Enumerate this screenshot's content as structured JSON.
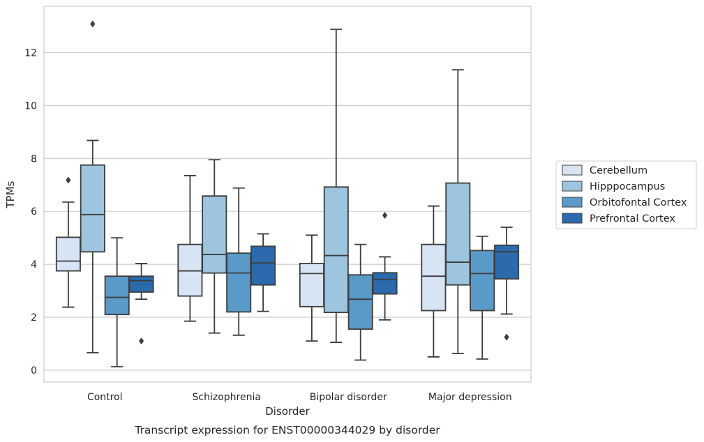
{
  "chart_data": {
    "type": "boxplot",
    "title": "",
    "caption": "Transcript expression for ENST00000344029 by disorder",
    "xlabel": "Disorder",
    "ylabel": "TPMs",
    "ylim": [
      -0.45,
      13.75
    ],
    "yticks": [
      "0",
      "2",
      "4",
      "6",
      "8",
      "10",
      "12"
    ],
    "grid": "horizontal",
    "legend_position": "right",
    "categories": [
      "Control",
      "Schizophrenia",
      "Bipolar disorder",
      "Major depression"
    ],
    "series": [
      {
        "name": "Cerebellum",
        "color": "#d6e4f3",
        "boxes": [
          {
            "whisker_low": 2.38,
            "q1": 3.75,
            "median": 4.12,
            "q3": 5.02,
            "whisker_high": 6.35,
            "outliers": [
              7.18
            ]
          },
          {
            "whisker_low": 1.85,
            "q1": 2.8,
            "median": 3.75,
            "q3": 4.75,
            "whisker_high": 7.35,
            "outliers": []
          },
          {
            "whisker_low": 1.1,
            "q1": 2.4,
            "median": 3.65,
            "q3": 4.03,
            "whisker_high": 5.1,
            "outliers": []
          },
          {
            "whisker_low": 0.5,
            "q1": 2.25,
            "median": 3.55,
            "q3": 4.75,
            "whisker_high": 6.2,
            "outliers": []
          }
        ]
      },
      {
        "name": "Hipppocampus",
        "color": "#9dc5df",
        "boxes": [
          {
            "whisker_low": 0.66,
            "q1": 4.47,
            "median": 5.88,
            "q3": 7.75,
            "whisker_high": 8.68,
            "outliers": [
              13.08
            ]
          },
          {
            "whisker_low": 1.4,
            "q1": 3.67,
            "median": 4.37,
            "q3": 6.58,
            "whisker_high": 7.95,
            "outliers": []
          },
          {
            "whisker_low": 1.05,
            "q1": 2.18,
            "median": 4.33,
            "q3": 6.92,
            "whisker_high": 12.88,
            "outliers": []
          },
          {
            "whisker_low": 0.63,
            "q1": 3.22,
            "median": 4.08,
            "q3": 7.07,
            "whisker_high": 11.35,
            "outliers": []
          }
        ]
      },
      {
        "name": "Orbitofontal Cortex",
        "color": "#5a9ac9",
        "boxes": [
          {
            "whisker_low": 0.13,
            "q1": 2.1,
            "median": 2.75,
            "q3": 3.55,
            "whisker_high": 5.0,
            "outliers": []
          },
          {
            "whisker_low": 1.32,
            "q1": 2.2,
            "median": 3.67,
            "q3": 4.42,
            "whisker_high": 6.88,
            "outliers": []
          },
          {
            "whisker_low": 0.38,
            "q1": 1.55,
            "median": 2.68,
            "q3": 3.6,
            "whisker_high": 4.75,
            "outliers": []
          },
          {
            "whisker_low": 0.42,
            "q1": 2.25,
            "median": 3.65,
            "q3": 4.52,
            "whisker_high": 5.06,
            "outliers": []
          }
        ]
      },
      {
        "name": "Prefrontal Cortex",
        "color": "#2b6aac",
        "boxes": [
          {
            "whisker_low": 2.68,
            "q1": 2.95,
            "median": 3.38,
            "q3": 3.55,
            "whisker_high": 4.03,
            "outliers": [
              1.1
            ]
          },
          {
            "whisker_low": 2.22,
            "q1": 3.22,
            "median": 4.05,
            "q3": 4.68,
            "whisker_high": 5.15,
            "outliers": []
          },
          {
            "whisker_low": 1.9,
            "q1": 2.88,
            "median": 3.43,
            "q3": 3.68,
            "whisker_high": 4.28,
            "outliers": [
              5.85
            ]
          },
          {
            "whisker_low": 2.12,
            "q1": 3.45,
            "median": 4.48,
            "q3": 4.72,
            "whisker_high": 5.4,
            "outliers": [
              1.25
            ]
          }
        ]
      }
    ]
  }
}
